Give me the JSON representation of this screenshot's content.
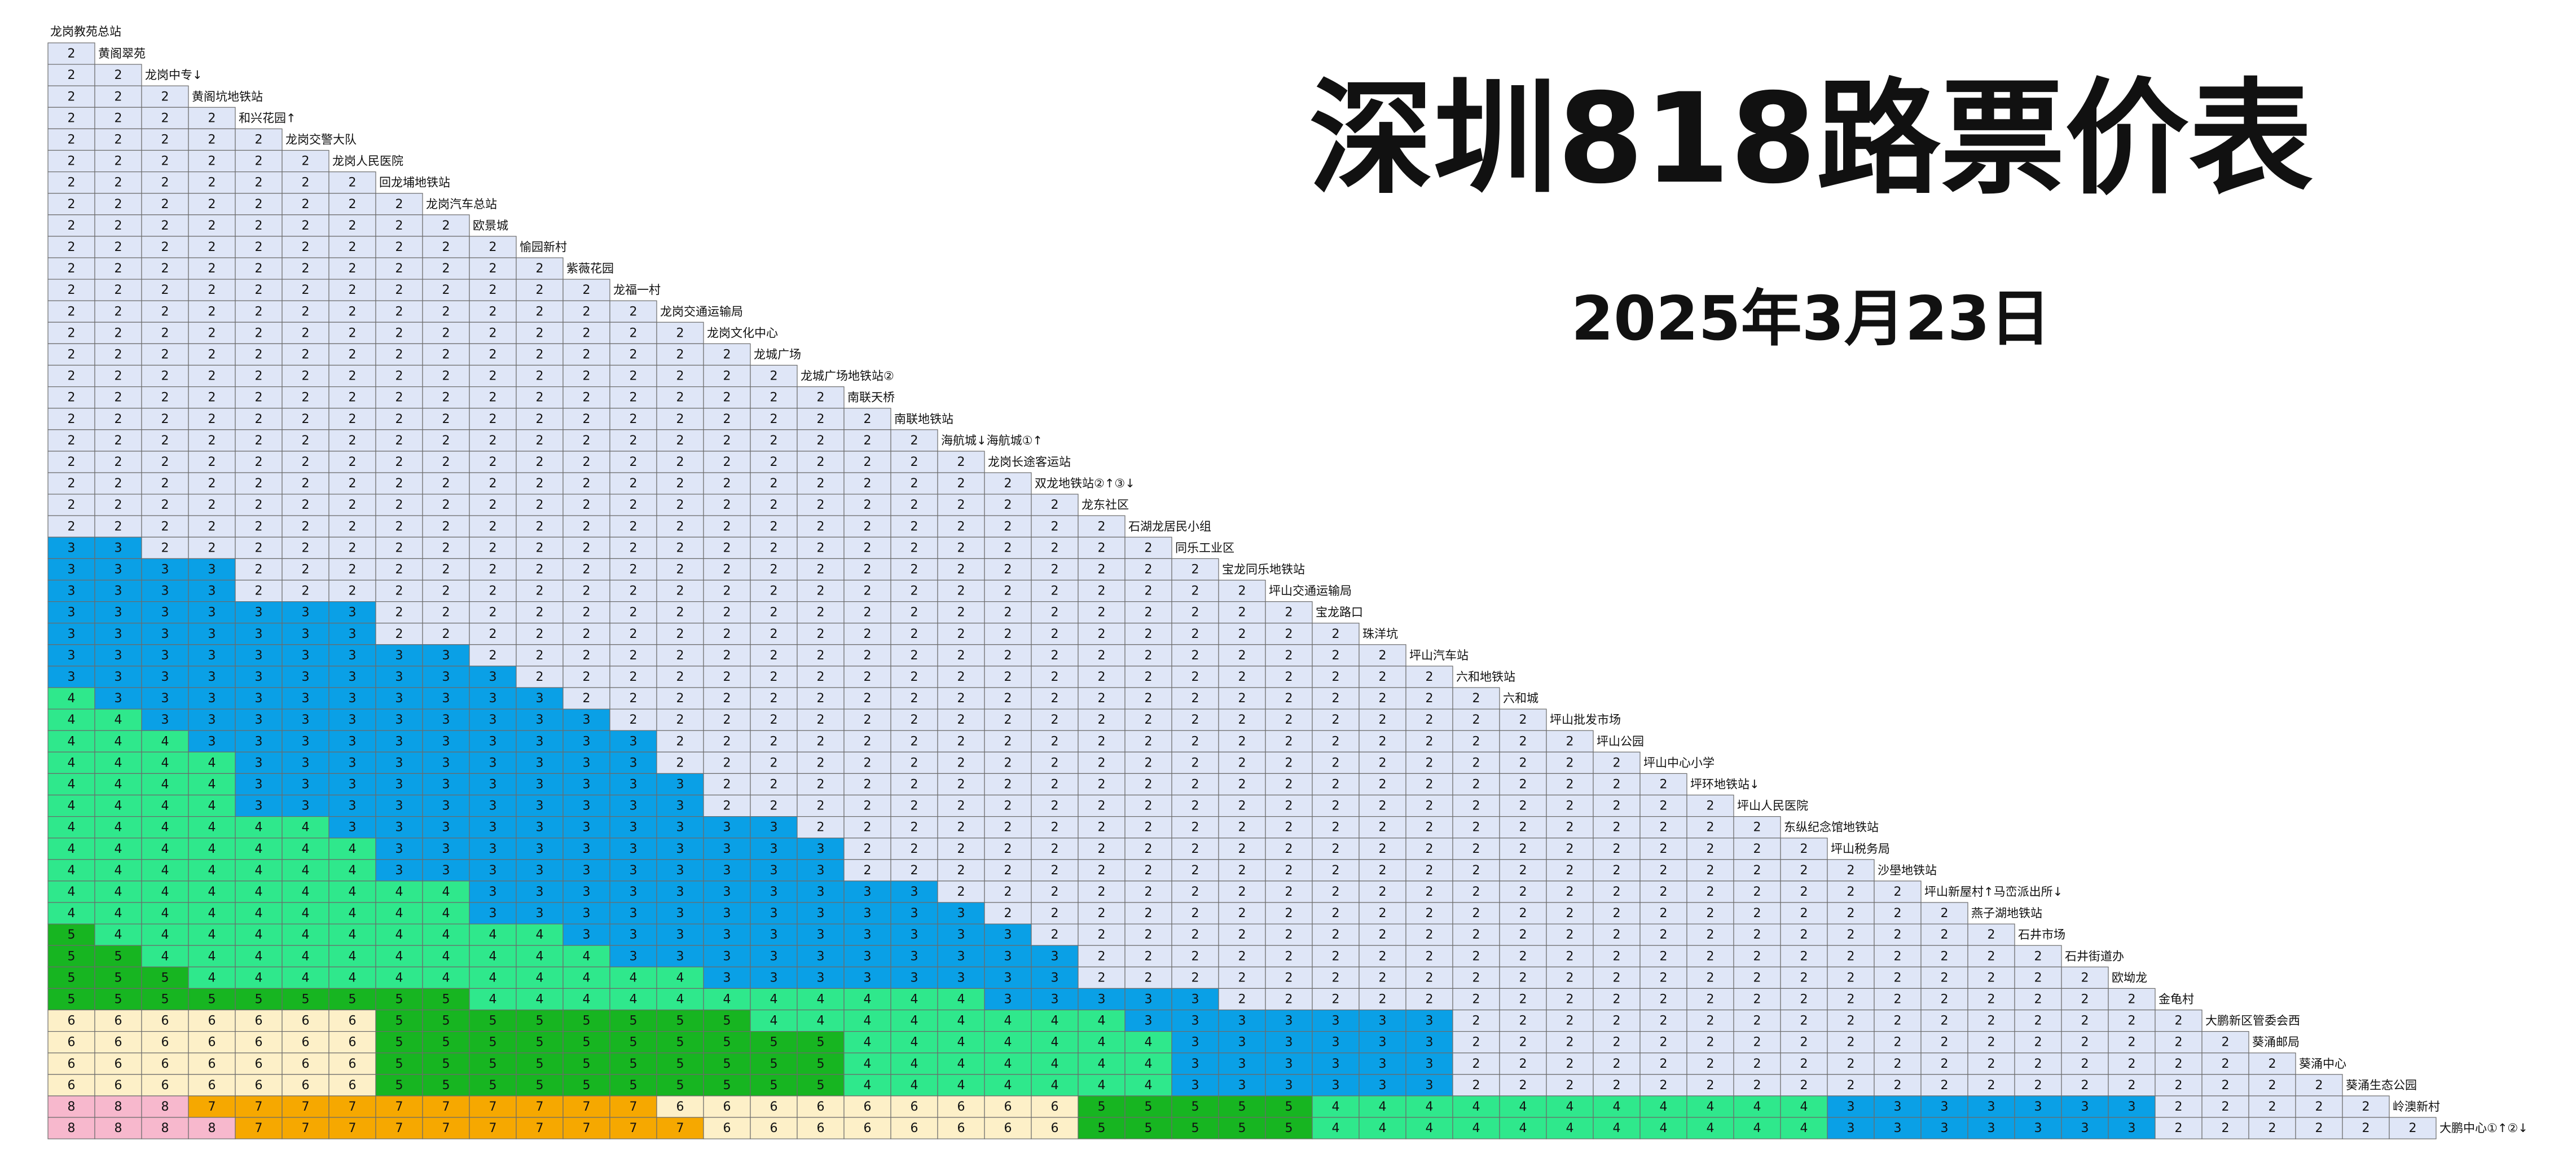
{
  "title": "深圳818路票价表",
  "date": "2025年3月23日",
  "stations": [
    "龙岗教苑总站",
    "黄阁翠苑",
    "龙岗中专↓",
    "黄阁坑地铁站",
    "和兴花园↑",
    "龙岗交警大队",
    "龙岗人民医院",
    "回龙埔地铁站",
    "龙岗汽车总站",
    "欧景城",
    "愉园新村",
    "紫薇花园",
    "龙福一村",
    "龙岗交通运输局",
    "龙岗文化中心",
    "龙城广场",
    "龙城广场地铁站②",
    "南联天桥",
    "南联地铁站",
    "海航城↓海航城①↑",
    "龙岗长途客运站",
    "双龙地铁站②↑③↓",
    "龙东社区",
    "石湖龙居民小组",
    "同乐工业区",
    "宝龙同乐地铁站",
    "坪山交通运输局",
    "宝龙路口",
    "珠洋坑",
    "坪山汽车站",
    "六和地铁站",
    "六和城",
    "坪山批发市场",
    "坪山公园",
    "坪山中心小学",
    "坪环地铁站↓",
    "坪山人民医院",
    "东纵纪念馆地铁站",
    "坪山税务局",
    "沙壆地铁站",
    "坪山新屋村↑马峦派出所↓",
    "燕子湖地铁站",
    "石井市场",
    "石井街道办",
    "欧坳龙",
    "金龟村",
    "大鹏新区管委会西",
    "葵涌邮局",
    "葵涌中心",
    "葵涌生态公园",
    "岭澳新村",
    "大鹏中心①↑②↓"
  ],
  "fares": [
    [
      2
    ],
    [
      2,
      2
    ],
    [
      2,
      2,
      2
    ],
    [
      2,
      2,
      2,
      2
    ],
    [
      2,
      2,
      2,
      2,
      2
    ],
    [
      2,
      2,
      2,
      2,
      2,
      2
    ],
    [
      2,
      2,
      2,
      2,
      2,
      2,
      2
    ],
    [
      2,
      2,
      2,
      2,
      2,
      2,
      2,
      2
    ],
    [
      2,
      2,
      2,
      2,
      2,
      2,
      2,
      2,
      2
    ],
    [
      2,
      2,
      2,
      2,
      2,
      2,
      2,
      2,
      2,
      2
    ],
    [
      2,
      2,
      2,
      2,
      2,
      2,
      2,
      2,
      2,
      2,
      2
    ],
    [
      2,
      2,
      2,
      2,
      2,
      2,
      2,
      2,
      2,
      2,
      2,
      2
    ],
    [
      2,
      2,
      2,
      2,
      2,
      2,
      2,
      2,
      2,
      2,
      2,
      2,
      2
    ],
    [
      2,
      2,
      2,
      2,
      2,
      2,
      2,
      2,
      2,
      2,
      2,
      2,
      2,
      2
    ],
    [
      2,
      2,
      2,
      2,
      2,
      2,
      2,
      2,
      2,
      2,
      2,
      2,
      2,
      2,
      2
    ],
    [
      2,
      2,
      2,
      2,
      2,
      2,
      2,
      2,
      2,
      2,
      2,
      2,
      2,
      2,
      2,
      2
    ],
    [
      2,
      2,
      2,
      2,
      2,
      2,
      2,
      2,
      2,
      2,
      2,
      2,
      2,
      2,
      2,
      2,
      2
    ],
    [
      2,
      2,
      2,
      2,
      2,
      2,
      2,
      2,
      2,
      2,
      2,
      2,
      2,
      2,
      2,
      2,
      2,
      2
    ],
    [
      2,
      2,
      2,
      2,
      2,
      2,
      2,
      2,
      2,
      2,
      2,
      2,
      2,
      2,
      2,
      2,
      2,
      2,
      2
    ],
    [
      2,
      2,
      2,
      2,
      2,
      2,
      2,
      2,
      2,
      2,
      2,
      2,
      2,
      2,
      2,
      2,
      2,
      2,
      2,
      2
    ],
    [
      2,
      2,
      2,
      2,
      2,
      2,
      2,
      2,
      2,
      2,
      2,
      2,
      2,
      2,
      2,
      2,
      2,
      2,
      2,
      2,
      2
    ],
    [
      2,
      2,
      2,
      2,
      2,
      2,
      2,
      2,
      2,
      2,
      2,
      2,
      2,
      2,
      2,
      2,
      2,
      2,
      2,
      2,
      2,
      2
    ],
    [
      2,
      2,
      2,
      2,
      2,
      2,
      2,
      2,
      2,
      2,
      2,
      2,
      2,
      2,
      2,
      2,
      2,
      2,
      2,
      2,
      2,
      2,
      2
    ],
    [
      3,
      3,
      2,
      2,
      2,
      2,
      2,
      2,
      2,
      2,
      2,
      2,
      2,
      2,
      2,
      2,
      2,
      2,
      2,
      2,
      2,
      2,
      2,
      2
    ],
    [
      3,
      3,
      3,
      3,
      2,
      2,
      2,
      2,
      2,
      2,
      2,
      2,
      2,
      2,
      2,
      2,
      2,
      2,
      2,
      2,
      2,
      2,
      2,
      2,
      2
    ],
    [
      3,
      3,
      3,
      3,
      2,
      2,
      2,
      2,
      2,
      2,
      2,
      2,
      2,
      2,
      2,
      2,
      2,
      2,
      2,
      2,
      2,
      2,
      2,
      2,
      2,
      2
    ],
    [
      3,
      3,
      3,
      3,
      3,
      3,
      3,
      2,
      2,
      2,
      2,
      2,
      2,
      2,
      2,
      2,
      2,
      2,
      2,
      2,
      2,
      2,
      2,
      2,
      2,
      2,
      2
    ],
    [
      3,
      3,
      3,
      3,
      3,
      3,
      3,
      2,
      2,
      2,
      2,
      2,
      2,
      2,
      2,
      2,
      2,
      2,
      2,
      2,
      2,
      2,
      2,
      2,
      2,
      2,
      2,
      2
    ],
    [
      3,
      3,
      3,
      3,
      3,
      3,
      3,
      3,
      3,
      2,
      2,
      2,
      2,
      2,
      2,
      2,
      2,
      2,
      2,
      2,
      2,
      2,
      2,
      2,
      2,
      2,
      2,
      2,
      2
    ],
    [
      3,
      3,
      3,
      3,
      3,
      3,
      3,
      3,
      3,
      3,
      2,
      2,
      2,
      2,
      2,
      2,
      2,
      2,
      2,
      2,
      2,
      2,
      2,
      2,
      2,
      2,
      2,
      2,
      2,
      2
    ],
    [
      4,
      3,
      3,
      3,
      3,
      3,
      3,
      3,
      3,
      3,
      3,
      2,
      2,
      2,
      2,
      2,
      2,
      2,
      2,
      2,
      2,
      2,
      2,
      2,
      2,
      2,
      2,
      2,
      2,
      2,
      2
    ],
    [
      4,
      4,
      3,
      3,
      3,
      3,
      3,
      3,
      3,
      3,
      3,
      3,
      2,
      2,
      2,
      2,
      2,
      2,
      2,
      2,
      2,
      2,
      2,
      2,
      2,
      2,
      2,
      2,
      2,
      2,
      2,
      2
    ],
    [
      4,
      4,
      4,
      3,
      3,
      3,
      3,
      3,
      3,
      3,
      3,
      3,
      3,
      2,
      2,
      2,
      2,
      2,
      2,
      2,
      2,
      2,
      2,
      2,
      2,
      2,
      2,
      2,
      2,
      2,
      2,
      2,
      2
    ],
    [
      4,
      4,
      4,
      4,
      3,
      3,
      3,
      3,
      3,
      3,
      3,
      3,
      3,
      2,
      2,
      2,
      2,
      2,
      2,
      2,
      2,
      2,
      2,
      2,
      2,
      2,
      2,
      2,
      2,
      2,
      2,
      2,
      2,
      2
    ],
    [
      4,
      4,
      4,
      4,
      3,
      3,
      3,
      3,
      3,
      3,
      3,
      3,
      3,
      3,
      2,
      2,
      2,
      2,
      2,
      2,
      2,
      2,
      2,
      2,
      2,
      2,
      2,
      2,
      2,
      2,
      2,
      2,
      2,
      2,
      2
    ],
    [
      4,
      4,
      4,
      4,
      3,
      3,
      3,
      3,
      3,
      3,
      3,
      3,
      3,
      3,
      2,
      2,
      2,
      2,
      2,
      2,
      2,
      2,
      2,
      2,
      2,
      2,
      2,
      2,
      2,
      2,
      2,
      2,
      2,
      2,
      2,
      2
    ],
    [
      4,
      4,
      4,
      4,
      4,
      4,
      3,
      3,
      3,
      3,
      3,
      3,
      3,
      3,
      3,
      3,
      2,
      2,
      2,
      2,
      2,
      2,
      2,
      2,
      2,
      2,
      2,
      2,
      2,
      2,
      2,
      2,
      2,
      2,
      2,
      2,
      2
    ],
    [
      4,
      4,
      4,
      4,
      4,
      4,
      4,
      3,
      3,
      3,
      3,
      3,
      3,
      3,
      3,
      3,
      3,
      2,
      2,
      2,
      2,
      2,
      2,
      2,
      2,
      2,
      2,
      2,
      2,
      2,
      2,
      2,
      2,
      2,
      2,
      2,
      2,
      2
    ],
    [
      4,
      4,
      4,
      4,
      4,
      4,
      4,
      3,
      3,
      3,
      3,
      3,
      3,
      3,
      3,
      3,
      3,
      2,
      2,
      2,
      2,
      2,
      2,
      2,
      2,
      2,
      2,
      2,
      2,
      2,
      2,
      2,
      2,
      2,
      2,
      2,
      2,
      2,
      2
    ],
    [
      4,
      4,
      4,
      4,
      4,
      4,
      4,
      4,
      4,
      3,
      3,
      3,
      3,
      3,
      3,
      3,
      3,
      3,
      3,
      2,
      2,
      2,
      2,
      2,
      2,
      2,
      2,
      2,
      2,
      2,
      2,
      2,
      2,
      2,
      2,
      2,
      2,
      2,
      2,
      2
    ],
    [
      4,
      4,
      4,
      4,
      4,
      4,
      4,
      4,
      4,
      3,
      3,
      3,
      3,
      3,
      3,
      3,
      3,
      3,
      3,
      3,
      2,
      2,
      2,
      2,
      2,
      2,
      2,
      2,
      2,
      2,
      2,
      2,
      2,
      2,
      2,
      2,
      2,
      2,
      2,
      2,
      2
    ],
    [
      5,
      4,
      4,
      4,
      4,
      4,
      4,
      4,
      4,
      4,
      4,
      3,
      3,
      3,
      3,
      3,
      3,
      3,
      3,
      3,
      3,
      2,
      2,
      2,
      2,
      2,
      2,
      2,
      2,
      2,
      2,
      2,
      2,
      2,
      2,
      2,
      2,
      2,
      2,
      2,
      2,
      2
    ],
    [
      5,
      5,
      4,
      4,
      4,
      4,
      4,
      4,
      4,
      4,
      4,
      4,
      3,
      3,
      3,
      3,
      3,
      3,
      3,
      3,
      3,
      3,
      2,
      2,
      2,
      2,
      2,
      2,
      2,
      2,
      2,
      2,
      2,
      2,
      2,
      2,
      2,
      2,
      2,
      2,
      2,
      2,
      2
    ],
    [
      5,
      5,
      5,
      4,
      4,
      4,
      4,
      4,
      4,
      4,
      4,
      4,
      4,
      4,
      3,
      3,
      3,
      3,
      3,
      3,
      3,
      3,
      2,
      2,
      2,
      2,
      2,
      2,
      2,
      2,
      2,
      2,
      2,
      2,
      2,
      2,
      2,
      2,
      2,
      2,
      2,
      2,
      2,
      2
    ],
    [
      5,
      5,
      5,
      5,
      5,
      5,
      5,
      5,
      5,
      4,
      4,
      4,
      4,
      4,
      4,
      4,
      4,
      4,
      4,
      4,
      3,
      3,
      3,
      3,
      3,
      2,
      2,
      2,
      2,
      2,
      2,
      2,
      2,
      2,
      2,
      2,
      2,
      2,
      2,
      2,
      2,
      2,
      2,
      2,
      2
    ],
    [
      6,
      6,
      6,
      6,
      6,
      6,
      6,
      5,
      5,
      5,
      5,
      5,
      5,
      5,
      5,
      4,
      4,
      4,
      4,
      4,
      4,
      4,
      4,
      3,
      3,
      3,
      3,
      3,
      3,
      3,
      2,
      2,
      2,
      2,
      2,
      2,
      2,
      2,
      2,
      2,
      2,
      2,
      2,
      2,
      2,
      2
    ],
    [
      6,
      6,
      6,
      6,
      6,
      6,
      6,
      5,
      5,
      5,
      5,
      5,
      5,
      5,
      5,
      5,
      5,
      4,
      4,
      4,
      4,
      4,
      4,
      4,
      3,
      3,
      3,
      3,
      3,
      3,
      2,
      2,
      2,
      2,
      2,
      2,
      2,
      2,
      2,
      2,
      2,
      2,
      2,
      2,
      2,
      2,
      2
    ],
    [
      6,
      6,
      6,
      6,
      6,
      6,
      6,
      5,
      5,
      5,
      5,
      5,
      5,
      5,
      5,
      5,
      5,
      4,
      4,
      4,
      4,
      4,
      4,
      4,
      3,
      3,
      3,
      3,
      3,
      3,
      2,
      2,
      2,
      2,
      2,
      2,
      2,
      2,
      2,
      2,
      2,
      2,
      2,
      2,
      2,
      2,
      2,
      2
    ],
    [
      6,
      6,
      6,
      6,
      6,
      6,
      6,
      5,
      5,
      5,
      5,
      5,
      5,
      5,
      5,
      5,
      5,
      4,
      4,
      4,
      4,
      4,
      4,
      4,
      3,
      3,
      3,
      3,
      3,
      3,
      2,
      2,
      2,
      2,
      2,
      2,
      2,
      2,
      2,
      2,
      2,
      2,
      2,
      2,
      2,
      2,
      2,
      2,
      2
    ],
    [
      8,
      8,
      8,
      7,
      7,
      7,
      7,
      7,
      7,
      7,
      7,
      7,
      7,
      6,
      6,
      6,
      6,
      6,
      6,
      6,
      6,
      6,
      5,
      5,
      5,
      5,
      5,
      4,
      4,
      4,
      4,
      4,
      4,
      4,
      4,
      4,
      4,
      4,
      3,
      3,
      3,
      3,
      3,
      3,
      3,
      2,
      2,
      2,
      2,
      2
    ],
    [
      8,
      8,
      8,
      8,
      7,
      7,
      7,
      7,
      7,
      7,
      7,
      7,
      7,
      7,
      6,
      6,
      6,
      6,
      6,
      6,
      6,
      6,
      5,
      5,
      5,
      5,
      5,
      4,
      4,
      4,
      4,
      4,
      4,
      4,
      4,
      4,
      4,
      4,
      3,
      3,
      3,
      3,
      3,
      3,
      3,
      2,
      2,
      2,
      2,
      2,
      2
    ]
  ]
}
